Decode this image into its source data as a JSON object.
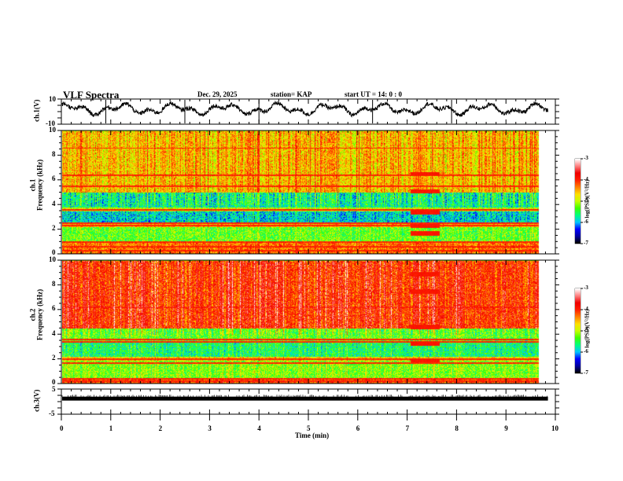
{
  "header": {
    "title": "VLF Spectra",
    "date": "Dec. 29, 2025",
    "station": "station= KAP",
    "start": "start  UT =   14: 0  : 0"
  },
  "colors": {
    "frame": "#000000",
    "trace": "#000000",
    "colormap": [
      "#000000",
      "#0000a0",
      "#0000ff",
      "#00c8ff",
      "#00ff80",
      "#40ff00",
      "#c8ff00",
      "#ffe000",
      "#ff8000",
      "#ff2000",
      "#f00000",
      "#ff8080",
      "#ffffff"
    ]
  },
  "chart_data": [
    {
      "type": "line",
      "name": "ch1-waveform",
      "ylabel": "ch.1(V)",
      "ylim": [
        -10,
        10
      ],
      "yticks": [
        "10",
        "-10"
      ],
      "xlim": [
        0,
        10
      ],
      "data_end_min": 9.85,
      "mean_level_V": 2,
      "amplitude_V": 6,
      "spike_times_min": [
        0.9,
        2.5,
        4.0,
        6.3,
        7.9
      ]
    },
    {
      "type": "heatmap",
      "name": "ch1-spectrogram",
      "ylabel": [
        "ch.1",
        "Frequency  (kHz)"
      ],
      "xlabel": "Time  (min)",
      "xlim": [
        0,
        10
      ],
      "ylim": [
        0,
        10
      ],
      "yticks": [
        "0",
        "2",
        "4",
        "6",
        "8",
        "10"
      ],
      "data_end_min": 9.85,
      "colorbar": {
        "label": "log(PSD)(V²/Hz)",
        "range": [
          -7,
          -3
        ],
        "ticks": [
          "-3",
          "-4",
          "-5",
          "-6",
          "-7"
        ]
      },
      "bands_kHz_logPSD": [
        {
          "f0": 0.0,
          "f1": 0.9,
          "level": -4.3
        },
        {
          "f0": 0.9,
          "f1": 2.2,
          "level": -5.3
        },
        {
          "f0": 2.2,
          "f1": 2.6,
          "level": -4.6
        },
        {
          "f0": 2.6,
          "f1": 3.5,
          "level": -5.9
        },
        {
          "f0": 3.5,
          "f1": 3.8,
          "level": -5.0
        },
        {
          "f0": 3.8,
          "f1": 5.0,
          "level": -5.7
        },
        {
          "f0": 5.0,
          "f1": 10.0,
          "level": -4.6
        }
      ],
      "lines_kHz": [
        0.3,
        0.6,
        1.0,
        2.3,
        2.5,
        3.6,
        5.5,
        6.4,
        8.6
      ],
      "event": {
        "t0_min": 7.2,
        "t1_min": 7.8,
        "freqs_kHz": [
          1.7,
          2.3,
          3.4,
          5.1,
          6.5
        ],
        "level": -3.9
      }
    },
    {
      "type": "heatmap",
      "name": "ch2-spectrogram",
      "ylabel": [
        "ch.2",
        "Frequency  (kHz)"
      ],
      "xlim": [
        0,
        10
      ],
      "ylim": [
        0,
        10
      ],
      "yticks": [
        "0",
        "2",
        "4",
        "6",
        "8",
        "10"
      ],
      "data_end_min": 9.85,
      "colorbar": {
        "label": "log(PSD)(V²/Hz)",
        "range": [
          -7,
          -3
        ],
        "ticks": [
          "-3",
          "-4",
          "-5",
          "-6",
          "-7"
        ]
      },
      "bands_kHz_logPSD": [
        {
          "f0": 0.0,
          "f1": 0.5,
          "level": -4.2
        },
        {
          "f0": 0.5,
          "f1": 1.9,
          "level": -5.2
        },
        {
          "f0": 1.9,
          "f1": 2.2,
          "level": -4.7
        },
        {
          "f0": 2.2,
          "f1": 3.5,
          "level": -5.6
        },
        {
          "f0": 3.5,
          "f1": 4.5,
          "level": -5.3
        },
        {
          "f0": 4.5,
          "f1": 10.0,
          "level": -4.0
        }
      ],
      "lines_kHz": [
        0.2,
        0.4,
        1.7,
        2.0,
        3.4,
        3.6,
        6.2
      ],
      "event": {
        "t0_min": 7.2,
        "t1_min": 7.8,
        "freqs_kHz": [
          1.9,
          3.3,
          4.6,
          7.5,
          8.9
        ],
        "level": -3.9
      }
    },
    {
      "type": "line",
      "name": "ch3-waveform",
      "ylabel": "ch.3(V)",
      "ylim": [
        -5,
        5
      ],
      "yticks": [
        "5",
        "-5"
      ],
      "xlim": [
        0,
        10
      ],
      "xticks": [
        "0",
        "1",
        "2",
        "3",
        "4",
        "5",
        "6",
        "7",
        "8",
        "9",
        "10"
      ],
      "data_end_min": 9.85,
      "mean_level_V": 1.2,
      "amplitude_V": 0.4
    }
  ],
  "xaxis": {
    "label": "Time  (min)"
  }
}
